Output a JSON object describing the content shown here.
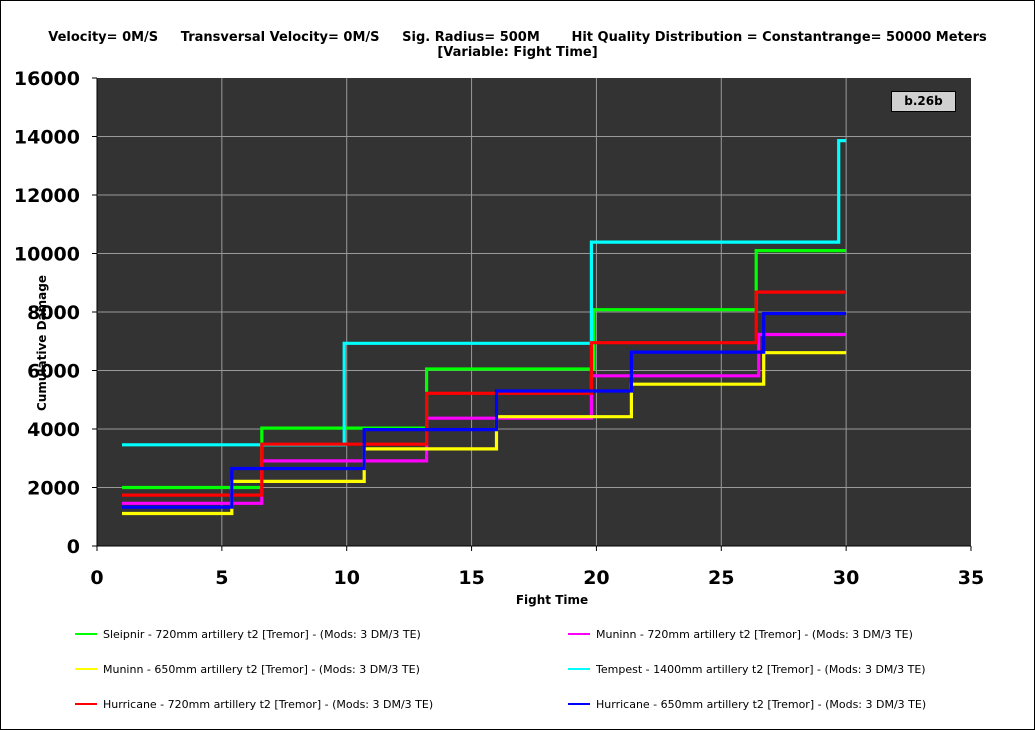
{
  "title": {
    "line1": "Velocity= 0M/S     Transversal Velocity= 0M/S     Sig. Radius= 500M       Hit Quality Distribution = Constantrange= 50000 Meters",
    "line2": "[Variable: Fight Time]"
  },
  "badge": "b.26b",
  "colors": {
    "plot_bg": "#333333",
    "grid": "#9a9a9a",
    "badge_bg": "#d0d0d0"
  },
  "chart_data": {
    "type": "line",
    "step": true,
    "title": "Velocity= 0M/S     Transversal Velocity= 0M/S     Sig. Radius= 500M       Hit Quality Distribution = Constantrange= 50000 Meters [Variable: Fight Time]",
    "xlabel": "Fight Time",
    "ylabel": "Cumulative Damage",
    "xlim": [
      0,
      35
    ],
    "ylim": [
      0,
      16000
    ],
    "xticks": [
      0,
      5,
      10,
      15,
      20,
      25,
      30,
      35
    ],
    "yticks": [
      0,
      2000,
      4000,
      6000,
      8000,
      10000,
      12000,
      14000,
      16000
    ],
    "grid": true,
    "legend_position": "bottom",
    "series": [
      {
        "name": "Sleipnir - 720mm artillery t2 [Tremor] - (Mods: 3 DM/3 TE)",
        "color": "#00ff00",
        "x": [
          1,
          6.6,
          13.2,
          19.9,
          26.4,
          30
        ],
        "y": [
          2000,
          4030,
          6050,
          8080,
          10100,
          10100
        ]
      },
      {
        "name": "Muninn - 720mm artillery t2 [Tremor] - (Mods: 3 DM/3 TE)",
        "color": "#ff00ff",
        "x": [
          1,
          6.6,
          13.2,
          19.8,
          26.5,
          30
        ],
        "y": [
          1460,
          2910,
          4370,
          5820,
          7230,
          7230
        ]
      },
      {
        "name": "Muninn - 650mm artillery t2 [Tremor] - (Mods: 3 DM/3 TE)",
        "color": "#ffff00",
        "x": [
          1,
          5.4,
          10.7,
          16.0,
          21.4,
          26.7,
          30
        ],
        "y": [
          1110,
          2210,
          3320,
          4420,
          5530,
          6610,
          6610
        ]
      },
      {
        "name": "Tempest - 1400mm artillery t2 [Tremor] - (Mods: 3 DM/3 TE)",
        "color": "#00ffff",
        "x": [
          1,
          9.9,
          19.8,
          29.7,
          30
        ],
        "y": [
          3460,
          6930,
          10390,
          13860,
          13860
        ]
      },
      {
        "name": "Hurricane - 720mm artillery t2 [Tremor] - (Mods: 3 DM/3 TE)",
        "color": "#ff0000",
        "x": [
          1,
          6.6,
          13.2,
          19.8,
          26.4,
          30
        ],
        "y": [
          1740,
          3480,
          5220,
          6950,
          8680,
          8680
        ]
      },
      {
        "name": "Hurricane - 650mm artillery t2 [Tremor] - (Mods: 3 DM/3 TE)",
        "color": "#0000ff",
        "x": [
          1,
          5.4,
          10.7,
          16.0,
          21.4,
          26.7,
          30
        ],
        "y": [
          1330,
          2650,
          3980,
          5300,
          6630,
          7950,
          7950
        ]
      }
    ]
  }
}
